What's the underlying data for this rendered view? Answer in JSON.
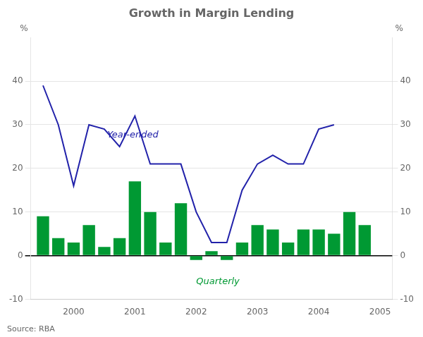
{
  "chart_data": {
    "type": "bar",
    "title": "Growth in Margin Lending",
    "ylabel": "%",
    "y2label": "%",
    "source": "Source: RBA",
    "x": [
      1999.5,
      1999.75,
      2000.0,
      2000.25,
      2000.5,
      2000.75,
      2001.0,
      2001.25,
      2001.5,
      2001.75,
      2002.0,
      2002.25,
      2002.5,
      2002.75,
      2003.0,
      2003.25,
      2003.5,
      2003.75,
      2004.0,
      2004.25,
      2004.5,
      2004.75
    ],
    "series": [
      {
        "type": "bar",
        "color": "#009933",
        "values": [
          9,
          4,
          3,
          7,
          2,
          4,
          17,
          10,
          3,
          12,
          -1,
          1,
          -1,
          3,
          7,
          6,
          3,
          6,
          6,
          5,
          10,
          7
        ]
      },
      {
        "type": "line",
        "color": "#2222aa",
        "values": [
          39,
          30,
          16,
          30,
          29,
          25,
          32,
          21,
          21,
          21,
          10,
          3,
          3,
          15,
          21,
          23,
          21,
          21,
          29,
          30,
          null,
          null
        ]
      }
    ],
    "annotations": [
      {
        "text": "Year-ended",
        "x": 2000.55,
        "y": 27,
        "color": "#2222aa"
      },
      {
        "text": "Quarterly",
        "x": 2002.0,
        "y": -6.5,
        "color": "#009933"
      }
    ],
    "xlim": [
      1999.3,
      2005.2
    ],
    "xticks": [
      2000,
      2001,
      2002,
      2003,
      2004,
      2005
    ],
    "ylim": [
      -10,
      50
    ],
    "yticks": [
      -10,
      0,
      10,
      20,
      30,
      40
    ],
    "y2lim": [
      -10,
      50
    ],
    "y2ticks": [
      -10,
      0,
      10,
      20,
      30,
      40
    ],
    "grid": true
  }
}
